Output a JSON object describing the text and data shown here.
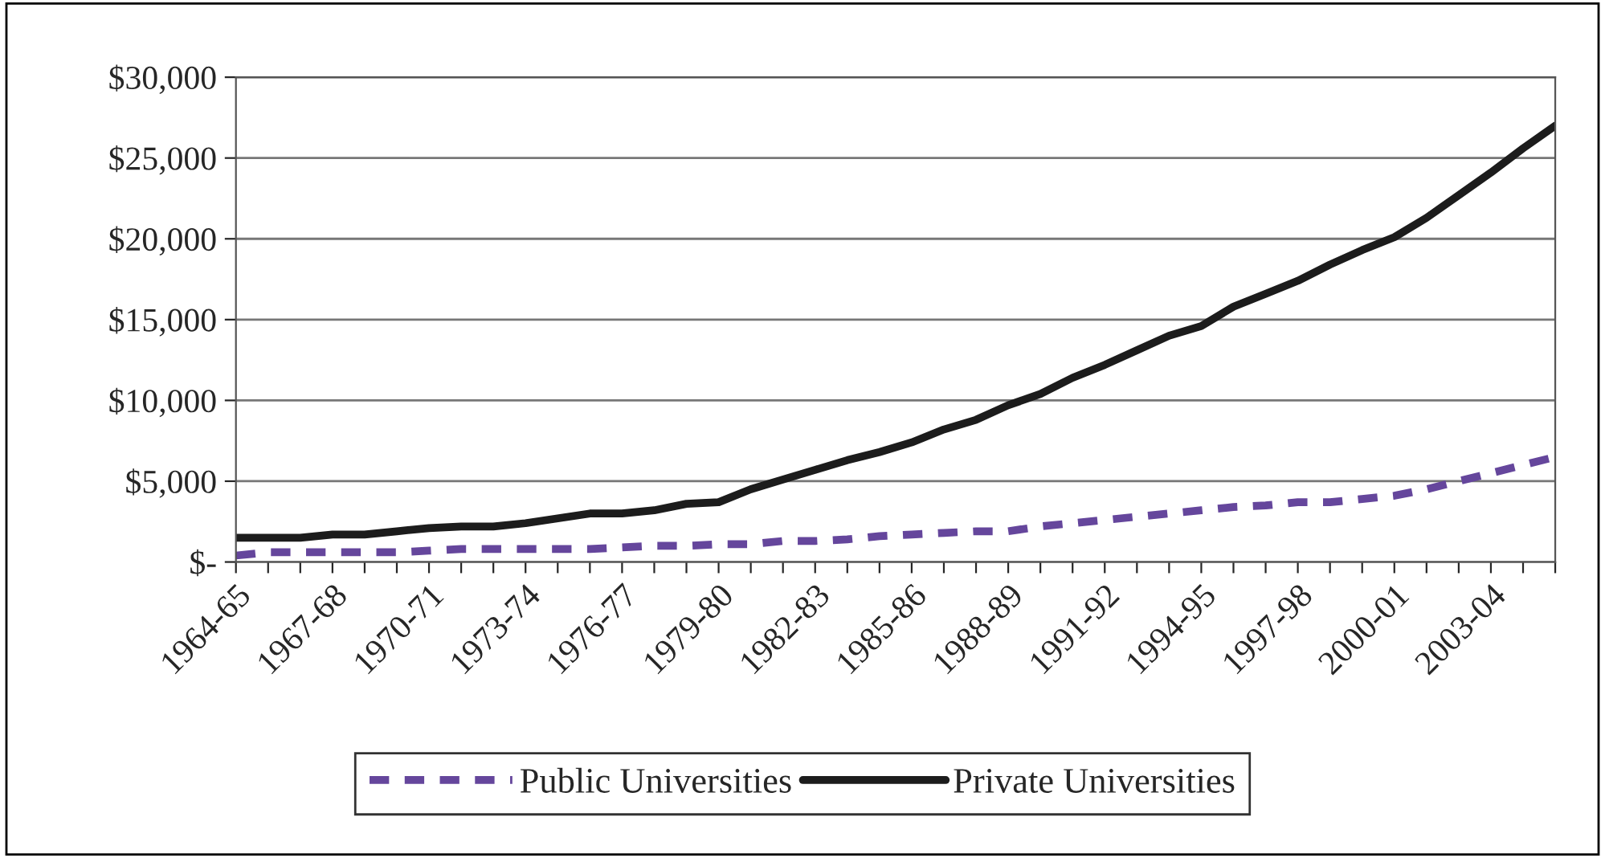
{
  "chart_data": {
    "type": "line",
    "categories": [
      "1964-65",
      null,
      null,
      "1967-68",
      null,
      null,
      "1970-71",
      null,
      null,
      "1973-74",
      null,
      null,
      "1976-77",
      null,
      null,
      "1979-80",
      null,
      null,
      "1982-83",
      null,
      null,
      "1985-86",
      null,
      null,
      "1988-89",
      null,
      null,
      "1991-92",
      null,
      null,
      "1994-95",
      null,
      null,
      "1997-98",
      null,
      null,
      "2000-01",
      null,
      null,
      "2003-04",
      null,
      null
    ],
    "series": [
      {
        "name": "Public Universities",
        "color": "#65469c",
        "line_style": "dashed",
        "values": [
          400,
          600,
          600,
          600,
          600,
          600,
          700,
          800,
          800,
          800,
          800,
          800,
          900,
          1000,
          1000,
          1100,
          1100,
          1300,
          1300,
          1400,
          1600,
          1700,
          1800,
          1900,
          1900,
          2200,
          2400,
          2600,
          2800,
          3000,
          3200,
          3400,
          3500,
          3700,
          3700,
          3900,
          4100,
          4500,
          5000,
          5500,
          6000,
          6500
        ]
      },
      {
        "name": "Private Universities",
        "color": "#1c1c1c",
        "line_style": "solid",
        "values": [
          1500,
          1500,
          1500,
          1700,
          1700,
          1900,
          2100,
          2200,
          2200,
          2400,
          2700,
          3000,
          3000,
          3200,
          3600,
          3700,
          4500,
          5100,
          5700,
          6300,
          6800,
          7400,
          8200,
          8800,
          9700,
          10400,
          11400,
          12200,
          13100,
          14000,
          14600,
          15800,
          16600,
          17400,
          18400,
          19300,
          20100,
          21300,
          22700,
          24100,
          25600,
          27000
        ]
      }
    ],
    "ylim": [
      0,
      30000
    ],
    "yticks": [
      {
        "value": 0,
        "label": "$-"
      },
      {
        "value": 5000,
        "label": "$5,000"
      },
      {
        "value": 10000,
        "label": "$10,000"
      },
      {
        "value": 15000,
        "label": "$15,000"
      },
      {
        "value": 20000,
        "label": "$20,000"
      },
      {
        "value": 25000,
        "label": "$25,000"
      },
      {
        "value": 30000,
        "label": "$30,000"
      }
    ],
    "grid": "y",
    "legend": "bottom"
  }
}
